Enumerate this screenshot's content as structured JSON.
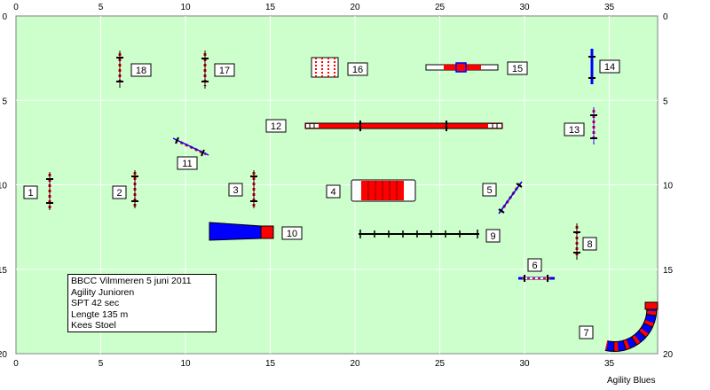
{
  "axis": {
    "x_ticks": [
      "0",
      "5",
      "10",
      "15",
      "20",
      "25",
      "30",
      "35"
    ],
    "y_ticks": [
      "0",
      "5",
      "10",
      "15",
      "20"
    ]
  },
  "colors": {
    "field": "#ccffcc",
    "jump_pole": "#ffffff",
    "jump_stripe": "#ff0000",
    "tunnel": "#0000ff",
    "tube_red": "#ff0000",
    "grid": "#ffffff"
  },
  "obstacles": [
    {
      "number": "1",
      "type": "jump"
    },
    {
      "number": "2",
      "type": "jump"
    },
    {
      "number": "3",
      "type": "jump"
    },
    {
      "number": "4",
      "type": "tire-tube"
    },
    {
      "number": "5",
      "type": "jump"
    },
    {
      "number": "6",
      "type": "jump"
    },
    {
      "number": "7",
      "type": "tunnel"
    },
    {
      "number": "8",
      "type": "jump"
    },
    {
      "number": "9",
      "type": "weave-poles"
    },
    {
      "number": "10",
      "type": "chute"
    },
    {
      "number": "11",
      "type": "jump"
    },
    {
      "number": "12",
      "type": "dog-walk"
    },
    {
      "number": "13",
      "type": "jump"
    },
    {
      "number": "14",
      "type": "jump"
    },
    {
      "number": "15",
      "type": "seesaw"
    },
    {
      "number": "16",
      "type": "wall"
    },
    {
      "number": "17",
      "type": "jump"
    },
    {
      "number": "18",
      "type": "jump"
    }
  ],
  "info": {
    "line1": "BBCC  Vilmmeren 5  juni 2011",
    "line2": "Agility Junioren",
    "line3": "SPT 42 sec",
    "line4": "Lengte  135 m",
    "line5": "Kees Stoel"
  },
  "footer": "Agility Blues"
}
